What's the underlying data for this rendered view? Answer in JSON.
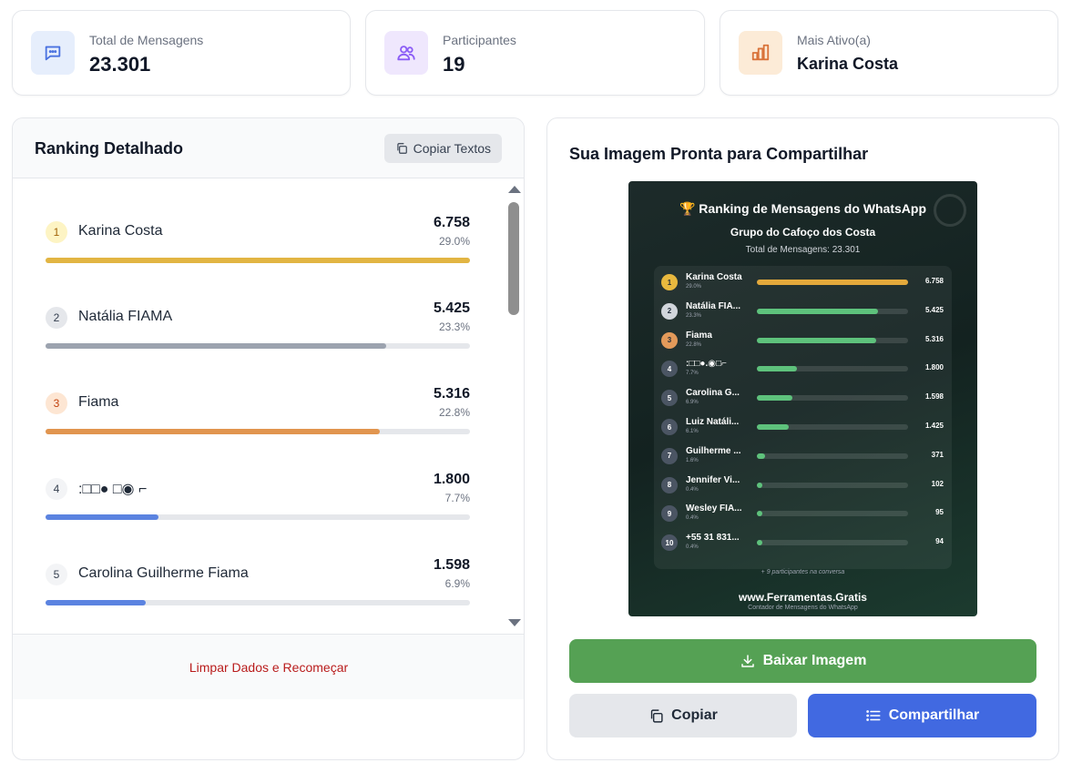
{
  "stats": [
    {
      "label": "Total de Mensagens",
      "value": "23.301",
      "icon": "chat-icon",
      "icon_bg": "#e6eefc",
      "icon_color": "#4a72e0"
    },
    {
      "label": "Participantes",
      "value": "19",
      "icon": "users-icon",
      "icon_bg": "#efe7fd",
      "icon_color": "#8b5cf6"
    },
    {
      "label": "Mais Ativo(a)",
      "value": "Karina Costa",
      "icon": "bar-chart-icon",
      "icon_bg": "#fcebd7",
      "icon_color": "#d9733a"
    }
  ],
  "ranking": {
    "title": "Ranking Detalhado",
    "copy_texts_label": "Copiar Textos",
    "reset_label": "Limpar Dados e Recomeçar",
    "items": [
      {
        "rank": "1",
        "name": "Karina Costa",
        "count": "6.758",
        "pct": "29.0%",
        "share": 1.0,
        "color": "#e2b543",
        "badge_bg": "#fdf4c4",
        "badge_color": "#a16207"
      },
      {
        "rank": "2",
        "name": "Natália FIAMA",
        "count": "5.425",
        "pct": "23.3%",
        "share": 0.803,
        "color": "#9ca3af",
        "badge_bg": "#e5e7eb",
        "badge_color": "#374151"
      },
      {
        "rank": "3",
        "name": "Fiama",
        "count": "5.316",
        "pct": "22.8%",
        "share": 0.787,
        "color": "#e1954f",
        "badge_bg": "#fde6d3",
        "badge_color": "#c2410c"
      },
      {
        "rank": "4",
        "name": ":□□● □◉ ⌐",
        "count": "1.800",
        "pct": "7.7%",
        "share": 0.266,
        "color": "#5b83e0",
        "badge_bg": "#f3f4f6",
        "badge_color": "#374151"
      },
      {
        "rank": "5",
        "name": "Carolina Guilherme Fiama",
        "count": "1.598",
        "pct": "6.9%",
        "share": 0.236,
        "color": "#5b83e0",
        "badge_bg": "#f3f4f6",
        "badge_color": "#374151"
      }
    ]
  },
  "share": {
    "title": "Sua Imagem Pronta para Compartilhar",
    "preview": {
      "title": "🏆 Ranking de Mensagens do WhatsApp",
      "group": "Grupo do Cafoço dos Costa",
      "total": "Total de Mensagens: 23.301",
      "note": "+ 9 participantes na conversa",
      "site": "www.Ferramentas.Gratis",
      "site_sub": "Contador de Mensagens do WhatsApp",
      "rows": [
        {
          "rank": "1",
          "name": "Karina Costa",
          "pct": "29.0%",
          "count": "6.758",
          "share": 1.0,
          "bar": "#e4a93b",
          "badge": "#e8b83e"
        },
        {
          "rank": "2",
          "name": "Natália FIA...",
          "pct": "23.3%",
          "count": "5.425",
          "share": 0.803,
          "bar": "#5ec27c",
          "badge": "#d1d5db"
        },
        {
          "rank": "3",
          "name": "Fiama",
          "pct": "22.8%",
          "count": "5.316",
          "share": 0.787,
          "bar": "#5ec27c",
          "badge": "#e39a5a"
        },
        {
          "rank": "4",
          "name": ":□□●.◉□⌐",
          "pct": "7.7%",
          "count": "1.800",
          "share": 0.266,
          "bar": "#5ec27c",
          "badge": "#4b5563"
        },
        {
          "rank": "5",
          "name": "Carolina G...",
          "pct": "6.9%",
          "count": "1.598",
          "share": 0.236,
          "bar": "#5ec27c",
          "badge": "#4b5563"
        },
        {
          "rank": "6",
          "name": "Luiz Natáli...",
          "pct": "6.1%",
          "count": "1.425",
          "share": 0.211,
          "bar": "#5ec27c",
          "badge": "#4b5563"
        },
        {
          "rank": "7",
          "name": "Guilherme ...",
          "pct": "1.6%",
          "count": "371",
          "share": 0.055,
          "bar": "#5ec27c",
          "badge": "#4b5563"
        },
        {
          "rank": "8",
          "name": "Jennifer Vi...",
          "pct": "0.4%",
          "count": "102",
          "share": 0.015,
          "bar": "#5ec27c",
          "badge": "#4b5563"
        },
        {
          "rank": "9",
          "name": "Wesley FIA...",
          "pct": "0.4%",
          "count": "95",
          "share": 0.014,
          "bar": "#5ec27c",
          "badge": "#4b5563"
        },
        {
          "rank": "10",
          "name": "+55 31 831...",
          "pct": "0.4%",
          "count": "94",
          "share": 0.014,
          "bar": "#5ec27c",
          "badge": "#4b5563"
        }
      ]
    },
    "download_label": "Baixar Imagem",
    "copy_label": "Copiar",
    "share_label": "Compartilhar"
  }
}
